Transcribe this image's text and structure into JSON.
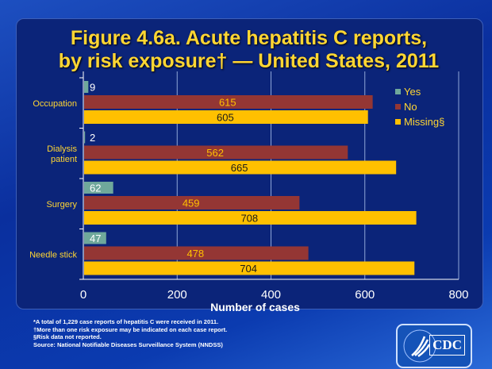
{
  "chart_data": {
    "type": "bar",
    "orientation": "horizontal",
    "title": "Figure 4.6a.  Acute hepatitis C reports,",
    "title_line2": "by risk exposure† — United States, 2011",
    "categories": [
      "Occupation",
      "Dialysis patient",
      "Surgery",
      "Needle stick"
    ],
    "series": [
      {
        "name": "Yes",
        "values": [
          9,
          2,
          62,
          47
        ],
        "color": "#6fa89b"
      },
      {
        "name": "No",
        "values": [
          615,
          562,
          459,
          478
        ],
        "color": "#943634"
      },
      {
        "name": "Missing§",
        "values": [
          605,
          665,
          708,
          704
        ],
        "color": "#ffc000"
      }
    ],
    "xlabel": "Number of cases",
    "xlim": [
      0,
      800
    ],
    "xticks": [
      0,
      200,
      400,
      600,
      800
    ],
    "grid": "vertical",
    "legend": "top-right"
  },
  "footnotes": [
    "*A total of 1,229 case reports of hepatitis C were received in 2011.",
    "†More than one risk exposure may be indicated on each case report.",
    "§Risk data not reported.",
    "Source: National Notifiable Diseases Surveillance System (NNDSS)"
  ],
  "logo": {
    "text": "CDC"
  }
}
